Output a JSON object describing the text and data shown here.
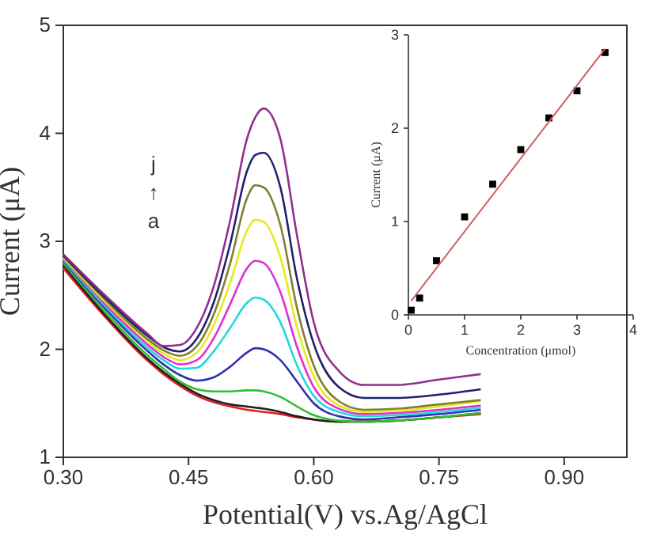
{
  "chart_data": [
    {
      "type": "line",
      "xlabel": "Potential(V) vs.Ag/AgCl",
      "ylabel": "Current (μA)",
      "x": [
        0.3,
        0.35,
        0.4,
        0.42,
        0.44,
        0.46,
        0.48,
        0.5,
        0.52,
        0.53,
        0.54,
        0.56,
        0.58,
        0.6,
        0.63,
        0.66,
        0.7,
        0.75,
        0.8
      ],
      "series": [
        {
          "color": "#e02020",
          "values": [
            2.75,
            2.3,
            1.9,
            1.77,
            1.66,
            1.57,
            1.51,
            1.47,
            1.44,
            1.43,
            1.42,
            1.4,
            1.37,
            1.35,
            1.33,
            1.33,
            1.34,
            1.37,
            1.4
          ]
        },
        {
          "color": "#202020",
          "values": [
            2.78,
            2.32,
            1.92,
            1.79,
            1.68,
            1.59,
            1.53,
            1.49,
            1.47,
            1.46,
            1.45,
            1.42,
            1.38,
            1.35,
            1.33,
            1.33,
            1.34,
            1.37,
            1.41
          ]
        },
        {
          "color": "#30c030",
          "values": [
            2.8,
            2.35,
            1.95,
            1.82,
            1.7,
            1.63,
            1.61,
            1.61,
            1.62,
            1.62,
            1.61,
            1.56,
            1.47,
            1.39,
            1.34,
            1.33,
            1.34,
            1.37,
            1.41
          ]
        },
        {
          "color": "#3030b0",
          "values": [
            2.82,
            2.38,
            1.99,
            1.86,
            1.76,
            1.71,
            1.74,
            1.84,
            1.97,
            2.01,
            2.0,
            1.9,
            1.7,
            1.5,
            1.38,
            1.35,
            1.37,
            1.4,
            1.44
          ]
        },
        {
          "color": "#20d8e0",
          "values": [
            2.83,
            2.4,
            2.02,
            1.9,
            1.82,
            1.83,
            1.98,
            2.2,
            2.43,
            2.48,
            2.46,
            2.25,
            1.85,
            1.57,
            1.42,
            1.38,
            1.39,
            1.42,
            1.46
          ]
        },
        {
          "color": "#e030d0",
          "values": [
            2.84,
            2.42,
            2.05,
            1.93,
            1.86,
            1.9,
            2.1,
            2.42,
            2.75,
            2.82,
            2.8,
            2.53,
            2.02,
            1.65,
            1.45,
            1.4,
            1.41,
            1.44,
            1.48
          ]
        },
        {
          "color": "#e8e820",
          "values": [
            2.85,
            2.44,
            2.08,
            1.96,
            1.9,
            1.97,
            2.22,
            2.62,
            3.1,
            3.2,
            3.18,
            2.85,
            2.2,
            1.75,
            1.48,
            1.42,
            1.43,
            1.47,
            1.52
          ]
        },
        {
          "color": "#808030",
          "values": [
            2.86,
            2.46,
            2.1,
            1.99,
            1.94,
            2.03,
            2.32,
            2.8,
            3.4,
            3.52,
            3.5,
            3.15,
            2.38,
            1.85,
            1.52,
            1.44,
            1.45,
            1.49,
            1.53
          ]
        },
        {
          "color": "#202070",
          "values": [
            2.87,
            2.48,
            2.13,
            2.02,
            1.98,
            2.1,
            2.43,
            2.98,
            3.65,
            3.8,
            3.82,
            3.5,
            2.65,
            2.05,
            1.65,
            1.55,
            1.55,
            1.58,
            1.63
          ]
        },
        {
          "color": "#903090",
          "values": [
            2.88,
            2.5,
            2.15,
            2.03,
            2.04,
            2.2,
            2.58,
            3.2,
            3.95,
            4.15,
            4.23,
            3.95,
            3.05,
            2.25,
            1.8,
            1.67,
            1.67,
            1.72,
            1.77
          ]
        }
      ],
      "xlim": [
        0.3,
        0.975
      ],
      "xticks": [
        {
          "value": 0.3,
          "label": "0.30"
        },
        {
          "value": 0.45,
          "label": "0.45"
        },
        {
          "value": 0.6,
          "label": "0.60"
        },
        {
          "value": 0.75,
          "label": "0.75"
        },
        {
          "value": 0.9,
          "label": "0.90"
        }
      ],
      "ylim": [
        1,
        5
      ],
      "yticks": [
        1,
        2,
        3,
        4,
        5
      ],
      "annotations": [
        "j",
        "↑",
        "a"
      ],
      "grid": false,
      "line_style": "solid"
    },
    {
      "type": "scatter",
      "xlabel": "Concentration (μmol)",
      "ylabel": "Current (μA)",
      "x": [
        0.05,
        0.2,
        0.5,
        1.0,
        1.5,
        2.0,
        2.5,
        3.0,
        3.5
      ],
      "series": [
        {
          "color": "#000000",
          "marker": "square",
          "values": [
            0.05,
            0.18,
            0.58,
            1.05,
            1.4,
            1.77,
            2.11,
            2.4,
            2.81
          ]
        },
        {
          "type": "line",
          "color": "#d06060",
          "x": [
            0.05,
            3.5
          ],
          "values": [
            0.15,
            2.85
          ]
        }
      ],
      "xlim": [
        0,
        4
      ],
      "xticks": [
        0,
        1,
        2,
        3,
        4
      ],
      "ylim": [
        0,
        3
      ],
      "yticks": [
        0,
        1,
        2,
        3
      ],
      "grid": false
    }
  ]
}
